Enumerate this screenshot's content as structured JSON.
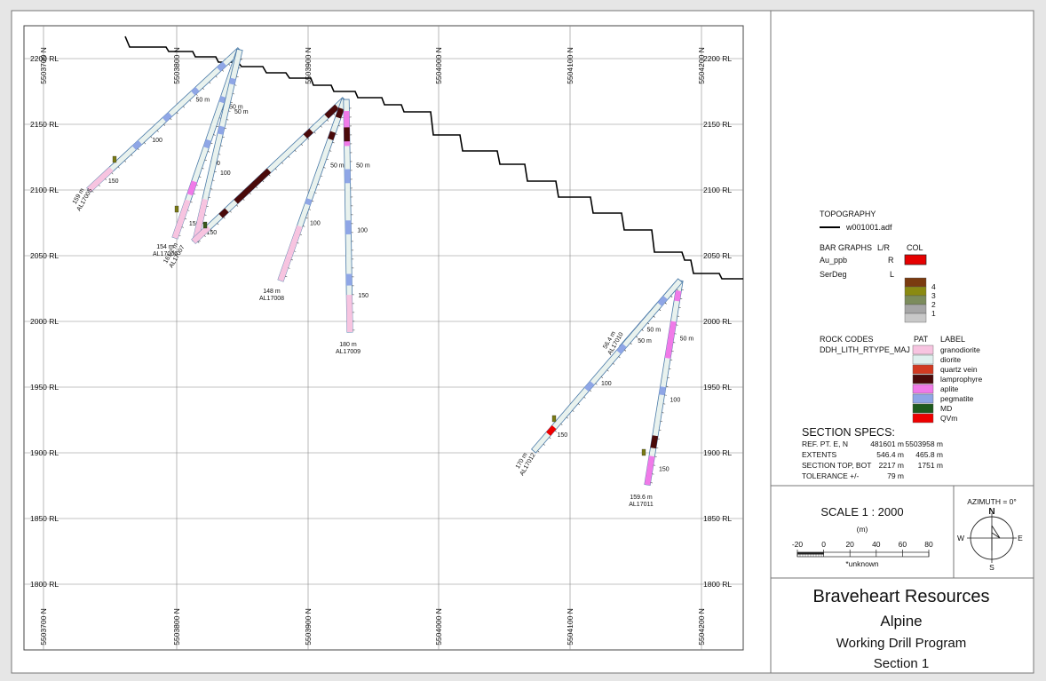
{
  "grid": {
    "northings": [
      "5503700 N",
      "5503800 N",
      "5503900 N",
      "5504000 N",
      "5504100 N",
      "5504200 N"
    ],
    "levels": [
      "2200 RL",
      "2150 RL",
      "2100 RL",
      "2050 RL",
      "2000 RL",
      "1950 RL",
      "1900 RL",
      "1850 RL",
      "1800 RL"
    ]
  },
  "holes": [
    {
      "id": "AL17005",
      "depth_label": "159 m",
      "ticks": [
        "50 m",
        "100",
        "150"
      ]
    },
    {
      "id": "AL17006",
      "depth_label": "154 m",
      "ticks": [
        "50 m",
        "100",
        "150"
      ]
    },
    {
      "id": "AL17007",
      "depth_label": "161.2 m",
      "ticks": [
        "50 m",
        "100",
        "150"
      ]
    },
    {
      "id": "AL17008",
      "depth_label": "148 m",
      "ticks": [
        "50 m",
        "100"
      ]
    },
    {
      "id": "AL17009",
      "depth_label": "180 m",
      "ticks": [
        "50 m",
        "100",
        "150"
      ]
    },
    {
      "id": "AL17010",
      "depth_label": "56.4 m",
      "ticks": [
        "50 m"
      ]
    },
    {
      "id": "AL17011",
      "depth_label": "159.6 m",
      "ticks": [
        "50 m",
        "100",
        "150"
      ]
    },
    {
      "id": "AL17012",
      "depth_label": "170 m",
      "ticks": [
        "50 m",
        "100",
        "150"
      ]
    }
  ],
  "legend": {
    "topography_heading": "TOPOGRAPHY",
    "topography_file": "w001001.adf",
    "bar_graphs_heading": "BAR GRAPHS",
    "lr_heading": "L/R",
    "col_heading": "COL",
    "bars": [
      {
        "name": "Au_ppb",
        "side": "R",
        "color": "#e60000"
      },
      {
        "name": "SerDeg",
        "side": "L"
      }
    ],
    "serdeg_scale": [
      {
        "label": "4",
        "color": "#7a3b10"
      },
      {
        "label": "3",
        "color": "#8a8a12"
      },
      {
        "label": "2",
        "color": "#7c8c5c"
      },
      {
        "label": "1",
        "color": "#a6a6a6"
      },
      {
        "label": "",
        "color": "#c8c8c8"
      }
    ],
    "rock_codes_heading": "ROCK CODES",
    "rock_field": "DDH_LITH_RTYPE_MAJ",
    "pat_heading": "PAT",
    "label_heading": "LABEL",
    "rock_types": [
      {
        "label": "granodiorite",
        "color": "#f7c4e0"
      },
      {
        "label": "diorite",
        "color": "#dff0ee"
      },
      {
        "label": "quartz vein",
        "color": "#d23a22"
      },
      {
        "label": "lamprophyre",
        "color": "#4a0a0a"
      },
      {
        "label": "aplite",
        "color": "#f07ae8"
      },
      {
        "label": "pegmatite",
        "color": "#8fa6e6"
      },
      {
        "label": "MD",
        "color": "#1e5a1e"
      },
      {
        "label": "QVm",
        "color": "#ee0000"
      }
    ]
  },
  "specs": {
    "heading": "SECTION  SPECS:",
    "rows": [
      {
        "label": "REF. PT.  E, N",
        "v1": "481601 m",
        "v2": "5503958 m"
      },
      {
        "label": "EXTENTS",
        "v1": "546.4 m",
        "v2": "465.8 m"
      },
      {
        "label": "SECTION TOP, BOT",
        "v1": "2217 m",
        "v2": "1751 m"
      },
      {
        "label": "TOLERANCE  +/-",
        "v1": "79 m",
        "v2": ""
      }
    ]
  },
  "scale": {
    "title": "SCALE  1 : 2000",
    "unit": "(m)",
    "ticks": [
      "-20",
      "0",
      "20",
      "40",
      "60",
      "80"
    ],
    "note": "*unknown"
  },
  "compass": {
    "azimuth": "AZIMUTH = 0°",
    "n": "N",
    "s": "S",
    "e": "E",
    "w": "W"
  },
  "title_block": {
    "company": "Braveheart Resources",
    "project": "Alpine",
    "program": "Working Drill Program",
    "section": "Section 1"
  },
  "colors": {
    "topography": "#000000",
    "grid": "#888888",
    "hole_outline": "#4a7aa8",
    "hole_fill": "#e9f2ee"
  }
}
